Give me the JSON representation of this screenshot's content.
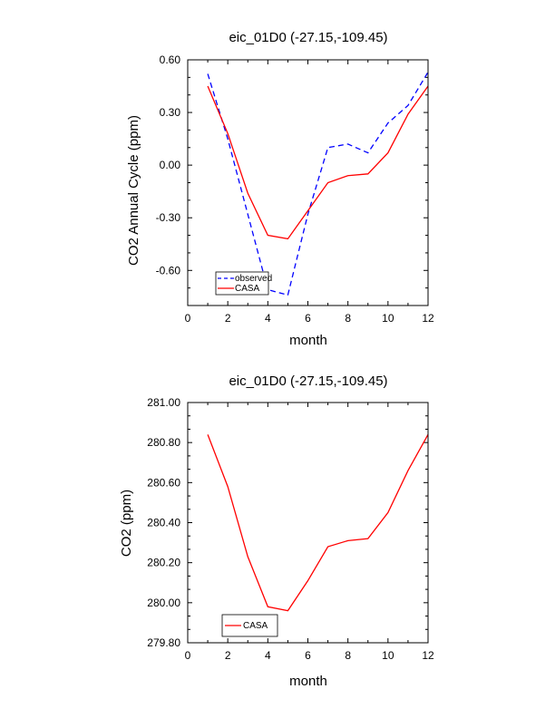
{
  "chart_data": [
    {
      "type": "line",
      "title": "eic_01D0 (-27.15,-109.45)",
      "xlabel": "month",
      "ylabel": "CO2 Annual Cycle (ppm)",
      "xlim": [
        0,
        12
      ],
      "ylim": [
        -0.8,
        0.6
      ],
      "xticks": [
        0,
        2,
        4,
        6,
        8,
        10,
        12
      ],
      "xtick_labels": [
        "0",
        "2",
        "4",
        "6",
        "8",
        "10",
        "12"
      ],
      "yticks": [
        0.6,
        0.3,
        0.0,
        -0.3,
        -0.6
      ],
      "ytick_labels": [
        "0.60",
        "0.30",
        "0.00",
        "-0.30",
        "-0.60"
      ],
      "legend_position": "bottom-left",
      "x": [
        1,
        2,
        3,
        4,
        5,
        6,
        7,
        8,
        9,
        10,
        11,
        12
      ],
      "series": [
        {
          "name": "observed",
          "color": "#0000ff",
          "dash": "dashed",
          "values": [
            0.52,
            0.15,
            -0.28,
            -0.71,
            -0.74,
            -0.28,
            0.1,
            0.12,
            0.07,
            0.24,
            0.34,
            0.53
          ]
        },
        {
          "name": "CASA",
          "color": "#ff0000",
          "dash": "solid",
          "values": [
            0.45,
            0.18,
            -0.16,
            -0.4,
            -0.42,
            -0.26,
            -0.1,
            -0.06,
            -0.05,
            0.07,
            0.29,
            0.45
          ]
        }
      ]
    },
    {
      "type": "line",
      "title": "eic_01D0 (-27.15,-109.45)",
      "xlabel": "month",
      "ylabel": "CO2 (ppm)",
      "xlim": [
        0,
        12
      ],
      "ylim": [
        279.8,
        281.0
      ],
      "xticks": [
        0,
        2,
        4,
        6,
        8,
        10,
        12
      ],
      "xtick_labels": [
        "0",
        "2",
        "4",
        "6",
        "8",
        "10",
        "12"
      ],
      "yticks": [
        281.0,
        280.8,
        280.6,
        280.4,
        280.2,
        280.0,
        279.8
      ],
      "ytick_labels": [
        "281.00",
        "280.80",
        "280.60",
        "280.40",
        "280.20",
        "280.00",
        "279.80"
      ],
      "legend_position": "bottom-left",
      "x": [
        1,
        2,
        3,
        4,
        5,
        6,
        7,
        8,
        9,
        10,
        11,
        12
      ],
      "series": [
        {
          "name": "CASA",
          "color": "#ff0000",
          "dash": "solid",
          "values": [
            280.84,
            280.58,
            280.23,
            279.98,
            279.96,
            280.11,
            280.28,
            280.31,
            280.32,
            280.45,
            280.66,
            280.84
          ]
        }
      ]
    }
  ]
}
